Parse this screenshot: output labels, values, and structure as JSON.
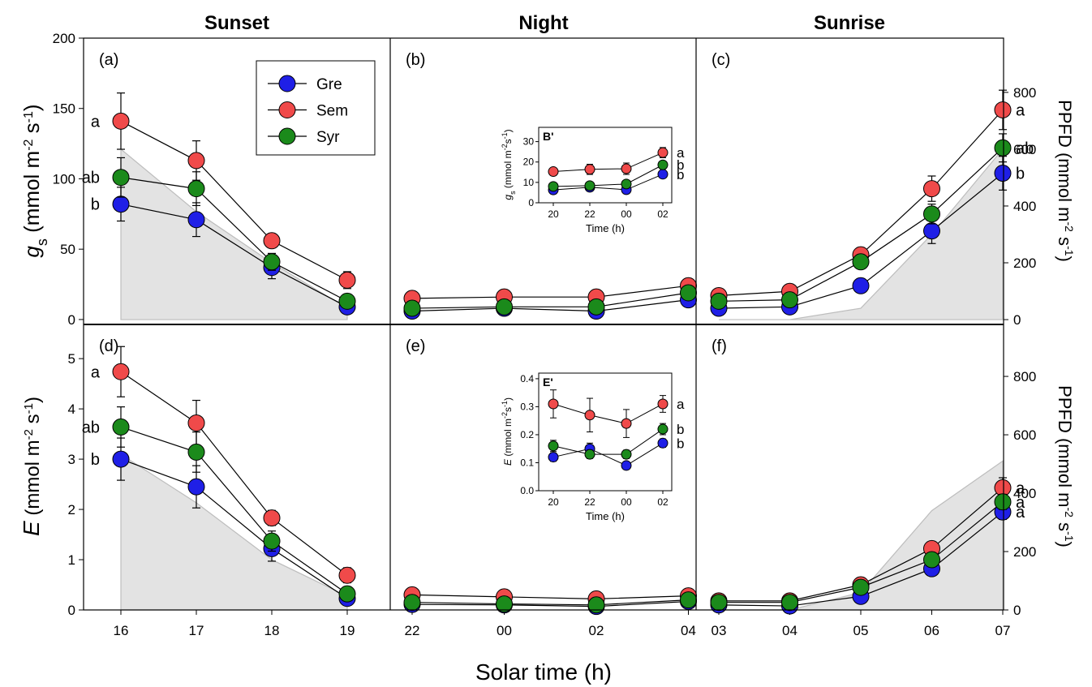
{
  "column_titles": [
    "Sunset",
    "Night",
    "Sunrise"
  ],
  "x_label": "Solar time (h)",
  "y_label_top": [
    "g",
    "s",
    " (mmol m",
    "-2",
    " s",
    "-1",
    ")"
  ],
  "y_label_bottom": [
    "E",
    " (mmol m",
    "-2",
    " s",
    "-1",
    ")"
  ],
  "y2_label": [
    "PPFD (mmol m",
    "-2",
    " s",
    "-1",
    ")"
  ],
  "chart_data": [
    {
      "type": "line",
      "panel_label": "(a)",
      "ylim": [
        -3.5,
        200
      ],
      "yticks": [
        0,
        50,
        100,
        150,
        200
      ],
      "y2lim": [
        -17,
        991
      ],
      "ppfd": [
        600,
        380,
        200,
        40
      ],
      "series": [
        {
          "name": "Gre",
          "color": "#1f1fe6",
          "values": [
            82,
            71,
            37,
            9
          ],
          "errors": [
            12,
            12,
            8,
            3
          ]
        },
        {
          "name": "Sem",
          "color": "#f04a4a",
          "values": [
            141,
            113,
            56,
            28
          ],
          "errors": [
            20,
            14,
            5,
            6
          ]
        },
        {
          "name": "Syr",
          "color": "#1b8a1b",
          "values": [
            101,
            93,
            41,
            13
          ],
          "errors": [
            14,
            12,
            6,
            3
          ]
        }
      ],
      "letters": [
        "b",
        "a",
        "ab"
      ]
    },
    {
      "type": "line",
      "panel_label": "(b)",
      "ylim": [
        -3.5,
        200
      ],
      "y2lim": [
        -17,
        991
      ],
      "series": [
        {
          "color": "#1f1fe6",
          "values": [
            6,
            8,
            6,
            14
          ]
        },
        {
          "color": "#f04a4a",
          "values": [
            15,
            16,
            16,
            24
          ]
        },
        {
          "color": "#1b8a1b",
          "values": [
            8,
            9,
            9,
            19
          ]
        }
      ],
      "inset": {
        "title": "B'",
        "categories": [
          "20",
          "22",
          "00",
          "02"
        ],
        "x_label": "Time (h)",
        "y_label": [
          "g",
          "s",
          " (mmol m",
          "-2",
          "s",
          "-1",
          ")"
        ],
        "ylim": [
          0,
          37
        ],
        "yticks": [
          0,
          10,
          20,
          30
        ],
        "series": [
          {
            "color": "#1f1fe6",
            "values": [
              6.3,
              7.6,
              6.4,
              14
            ],
            "errors": [
              1,
              1,
              0.5,
              1.5
            ]
          },
          {
            "color": "#f04a4a",
            "values": [
              15.3,
              16.4,
              16.7,
              24.6
            ],
            "errors": [
              1.5,
              2.5,
              2.8,
              2.5
            ]
          },
          {
            "color": "#1b8a1b",
            "values": [
              8,
              8.4,
              9.2,
              18.6
            ],
            "errors": [
              0.8,
              1,
              0.8,
              1.5
            ]
          }
        ],
        "letters": [
          "b",
          "a",
          "b"
        ]
      }
    },
    {
      "type": "line",
      "panel_label": "(c)",
      "ylim": [
        -3.5,
        200
      ],
      "y2lim": [
        -17,
        991
      ],
      "y2ticks": [
        0,
        200,
        400,
        600,
        800
      ],
      "ppfd": [
        0,
        0,
        40,
        300,
        600
      ],
      "series": [
        {
          "color": "#1f1fe6",
          "values": [
            8,
            9,
            24,
            63,
            104
          ],
          "errors": [
            3,
            3,
            4,
            9,
            12
          ]
        },
        {
          "color": "#f04a4a",
          "values": [
            17,
            20,
            46,
            93,
            149
          ],
          "errors": [
            3,
            3,
            5,
            9,
            14
          ]
        },
        {
          "color": "#1b8a1b",
          "values": [
            13,
            14,
            41,
            75,
            122
          ],
          "errors": [
            3,
            3,
            4,
            7,
            10
          ]
        }
      ],
      "letters": [
        "b",
        "a",
        "ab"
      ]
    },
    {
      "type": "line",
      "panel_label": "(d)",
      "categories": [
        "16",
        "17",
        "18",
        "19"
      ],
      "ylim": [
        0,
        5.68
      ],
      "yticks": [
        0,
        1,
        2,
        3,
        4,
        5
      ],
      "y2lim": [
        0,
        978
      ],
      "ppfd": [
        533,
        367,
        172,
        47
      ],
      "series": [
        {
          "color": "#1f1fe6",
          "values": [
            3.0,
            2.45,
            1.22,
            0.23
          ],
          "errors": [
            0.42,
            0.42,
            0.25,
            0.1
          ]
        },
        {
          "color": "#f04a4a",
          "values": [
            4.74,
            3.72,
            1.83,
            0.69
          ],
          "errors": [
            0.5,
            0.45,
            0.15,
            0.15
          ]
        },
        {
          "color": "#1b8a1b",
          "values": [
            3.64,
            3.14,
            1.37,
            0.32
          ],
          "errors": [
            0.4,
            0.4,
            0.2,
            0.1
          ]
        }
      ],
      "letters": [
        "b",
        "a",
        "ab"
      ]
    },
    {
      "type": "line",
      "panel_label": "(e)",
      "categories": [
        "22",
        "00",
        "02",
        "04"
      ],
      "ylim": [
        0,
        5.68
      ],
      "y2lim": [
        0,
        978
      ],
      "series": [
        {
          "color": "#1f1fe6",
          "values": [
            0.11,
            0.1,
            0.07,
            0.17
          ]
        },
        {
          "color": "#f04a4a",
          "values": [
            0.3,
            0.26,
            0.22,
            0.28
          ]
        },
        {
          "color": "#1b8a1b",
          "values": [
            0.15,
            0.12,
            0.1,
            0.2
          ]
        }
      ],
      "inset": {
        "title": "E'",
        "categories": [
          "20",
          "22",
          "00",
          "02"
        ],
        "x_label": "Time (h)",
        "y_label": [
          "E",
          " (mmol m",
          "-2",
          "s",
          "-1",
          ")"
        ],
        "ylim": [
          0,
          0.42
        ],
        "yticks": [
          {
            "value": 0,
            "label": "0.0"
          },
          0.1,
          0.2,
          0.3,
          0.4
        ],
        "series": [
          {
            "color": "#1f1fe6",
            "values": [
              0.12,
              0.15,
              0.09,
              0.17
            ],
            "errors": [
              0.015,
              0.02,
              0.01,
              0.015
            ]
          },
          {
            "color": "#f04a4a",
            "values": [
              0.31,
              0.27,
              0.24,
              0.31
            ],
            "errors": [
              0.05,
              0.06,
              0.05,
              0.03
            ]
          },
          {
            "color": "#1b8a1b",
            "values": [
              0.16,
              0.13,
              0.13,
              0.22
            ],
            "errors": [
              0.02,
              0.015,
              0.015,
              0.02
            ]
          }
        ],
        "letters": [
          "b",
          "a",
          "b"
        ]
      }
    },
    {
      "type": "line",
      "panel_label": "(f)",
      "categories": [
        "03",
        "04",
        "05",
        "06",
        "07"
      ],
      "ylim": [
        0,
        5.68
      ],
      "y2lim": [
        0,
        978
      ],
      "y2ticks": [
        0,
        200,
        400,
        600,
        800
      ],
      "ppfd": [
        0,
        0,
        60,
        340,
        510
      ],
      "series": [
        {
          "color": "#1f1fe6",
          "values": [
            0.1,
            0.08,
            0.27,
            0.82,
            1.95
          ],
          "errors": [
            0.05,
            0.05,
            0.05,
            0.08,
            0.15
          ]
        },
        {
          "color": "#f04a4a",
          "values": [
            0.18,
            0.18,
            0.5,
            1.22,
            2.43
          ],
          "errors": [
            0.05,
            0.05,
            0.06,
            0.1,
            0.2
          ]
        },
        {
          "color": "#1b8a1b",
          "values": [
            0.15,
            0.15,
            0.45,
            1.0,
            2.15
          ],
          "errors": [
            0.05,
            0.05,
            0.05,
            0.08,
            0.15
          ]
        }
      ],
      "letters": [
        "a",
        "a",
        "a"
      ]
    }
  ]
}
